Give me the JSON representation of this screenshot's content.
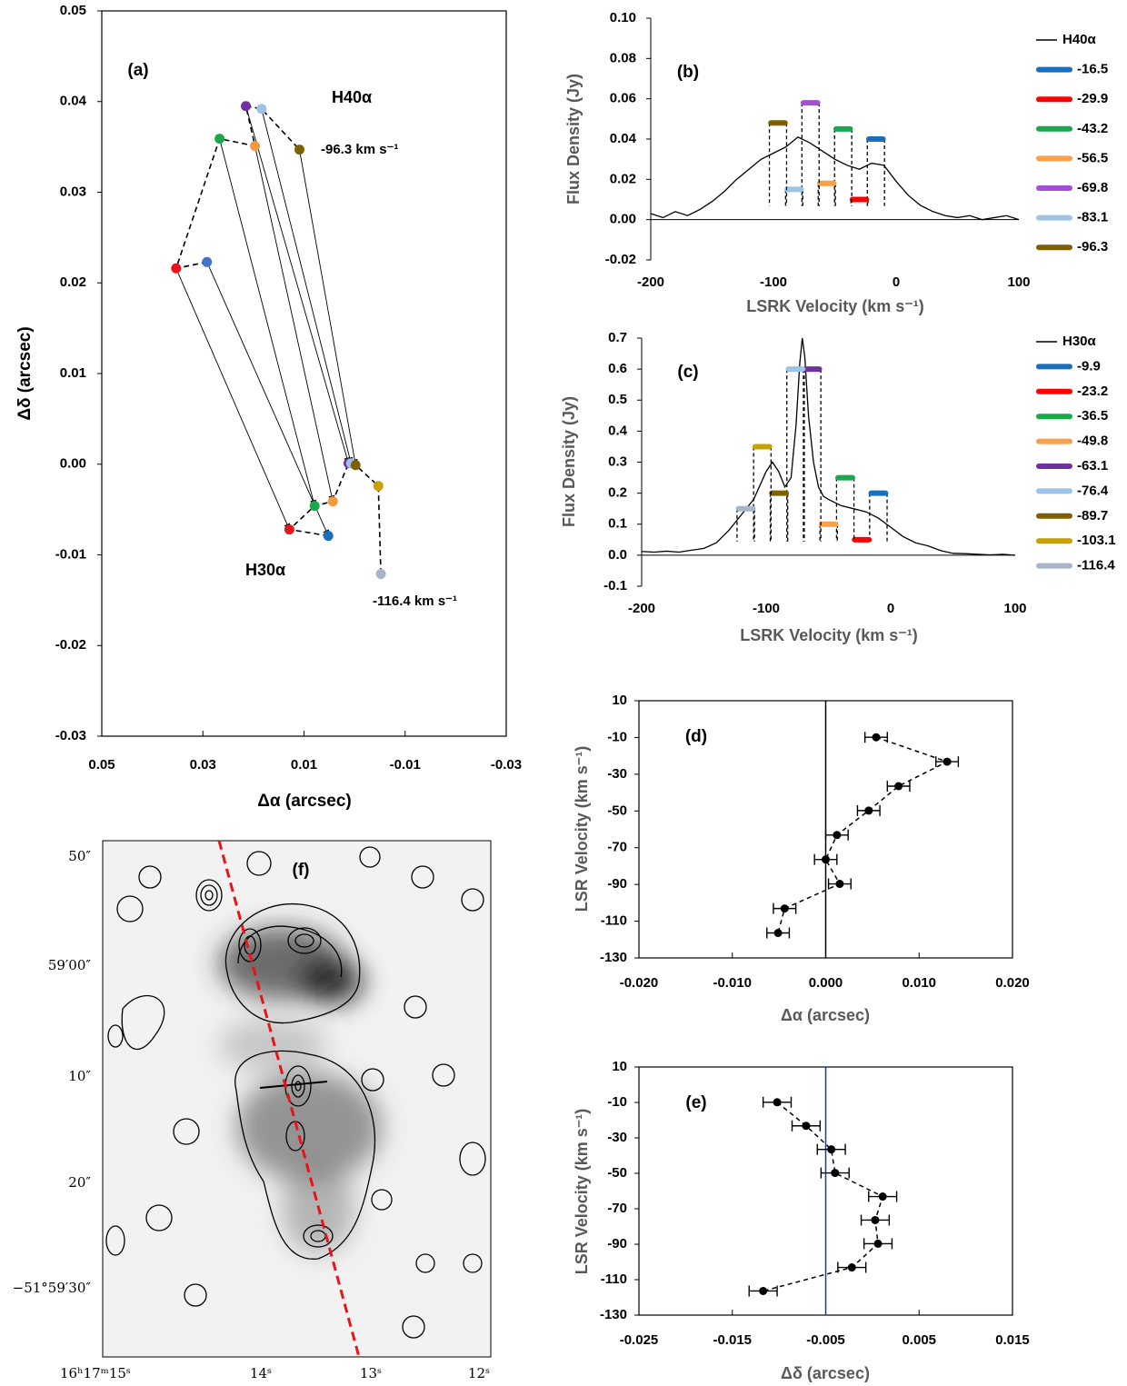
{
  "chart_data": [
    {
      "type": "scatter",
      "label": "(a)",
      "xlabel": "Δα (arcsec)",
      "ylabel": "Δδ (arcsec)",
      "xlim": [
        0.05,
        -0.03
      ],
      "xticks": [
        0.05,
        0.03,
        0.01,
        -0.01,
        -0.03
      ],
      "ylim": [
        -0.03,
        0.05
      ],
      "yticks": [
        0.05,
        0.04,
        0.03,
        0.02,
        0.01,
        {
          "value": 0,
          "label": "0.00"
        },
        -0.01,
        -0.02,
        -0.03
      ],
      "series": [
        {
          "name": "H40α",
          "x": [
            0.0292,
            0.0353,
            0.0267,
            0.0197,
            0.0215,
            0.0184,
            0.0109
          ],
          "y": [
            0.0223,
            0.0216,
            0.0359,
            0.0351,
            0.0395,
            0.0392,
            0.0347
          ],
          "colors": [
            "#4472c4",
            "#e8141a",
            "#1aa84a",
            "#f59a3c",
            "#7030a0",
            "#9dc3e6",
            "#7f6000"
          ]
        },
        {
          "name": "H30α",
          "x": [
            0.0052,
            0.0129,
            0.0079,
            0.0043,
            0.0012,
            0.0007,
            -0.0002,
            -0.0047,
            -0.0052
          ],
          "y": [
            -0.0079,
            -0.0072,
            -0.0046,
            -0.0041,
            0.0001,
            0.0001,
            -0.0001,
            -0.0024,
            -0.0121
          ],
          "colors": [
            "#1a6fbd",
            "#e8141a",
            "#1aa84a",
            "#f59a3c",
            "#7030a0",
            "#9dc3e6",
            "#7f6000",
            "#c8a000",
            "#a8b4c8"
          ]
        }
      ],
      "annotations": [
        "-96.3 km s⁻¹",
        "-116.4 km s⁻¹"
      ]
    },
    {
      "type": "line",
      "label": "(b)",
      "xlabel": "LSRK Velocity (km s⁻¹)",
      "ylabel": "Flux Density (Jy)",
      "xlim": [
        -200,
        100
      ],
      "xticks": [
        -200,
        -100,
        0,
        100
      ],
      "ylim": [
        -0.02,
        0.1
      ],
      "yticks": [
        {
          "value": 0.1,
          "label": "0.10"
        },
        0.08,
        0.06,
        0.04,
        0.02,
        {
          "value": 0,
          "label": "0.00"
        },
        -0.02
      ],
      "series": [
        {
          "name": "H40α",
          "color": "#000000",
          "x": [
            -200,
            -190,
            -180,
            -170,
            -160,
            -150,
            -140,
            -130,
            -120,
            -110,
            -100,
            -90,
            -80,
            -70,
            -60,
            -50,
            -40,
            -30,
            -20,
            -10,
            0,
            10,
            20,
            30,
            40,
            50,
            60,
            70,
            80,
            90,
            100
          ],
          "values": [
            0.003,
            0.001,
            0.004,
            0.002,
            0.005,
            0.009,
            0.014,
            0.02,
            0.025,
            0.03,
            0.033,
            0.036,
            0.041,
            0.038,
            0.034,
            0.03,
            0.027,
            0.025,
            0.028,
            0.027,
            0.019,
            0.012,
            0.007,
            0.004,
            0.002,
            0.001,
            0.002,
            0.0,
            0.001,
            0.002,
            0.0
          ]
        }
      ],
      "channels": {
        "names": [
          "-16.5",
          "-29.9",
          "-43.2",
          "-56.5",
          "-69.8",
          "-83.1",
          "-96.3"
        ],
        "x": [
          -16.5,
          -29.9,
          -43.2,
          -56.5,
          -69.8,
          -83.1,
          -96.3
        ],
        "values": [
          0.04,
          0.01,
          0.045,
          0.018,
          0.058,
          0.015,
          0.048
        ],
        "colors": [
          "#1a6fbd",
          "#ff0000",
          "#1aa84a",
          "#f9a04a",
          "#a050d0",
          "#9dc3e6",
          "#7f6000"
        ]
      }
    },
    {
      "type": "line",
      "label": "(c)",
      "xlabel": "LSRK  Velocity (km s⁻¹)",
      "ylabel": "Flux Density (Jy)",
      "xlim": [
        -200,
        100
      ],
      "xticks": [
        -200,
        -100,
        0,
        100
      ],
      "ylim": [
        -0.1,
        0.7
      ],
      "yticks": [
        0.7,
        0.6,
        0.5,
        0.4,
        0.3,
        0.2,
        0.1,
        {
          "value": 0,
          "label": "0.0"
        },
        -0.1
      ],
      "series": [
        {
          "name": "H30α",
          "color": "#000000",
          "x": [
            -200,
            -190,
            -180,
            -170,
            -160,
            -150,
            -140,
            -130,
            -120,
            -110,
            -100,
            -95,
            -90,
            -85,
            -80,
            -76,
            -73,
            -71,
            -69,
            -66,
            -62,
            -58,
            -54,
            -50,
            -40,
            -30,
            -20,
            -10,
            0,
            10,
            20,
            30,
            40,
            50,
            60,
            70,
            80,
            90,
            100
          ],
          "values": [
            0.012,
            0.01,
            0.013,
            0.01,
            0.016,
            0.022,
            0.04,
            0.08,
            0.13,
            0.18,
            0.27,
            0.3,
            0.27,
            0.22,
            0.25,
            0.42,
            0.62,
            0.7,
            0.64,
            0.45,
            0.3,
            0.22,
            0.19,
            0.18,
            0.16,
            0.15,
            0.14,
            0.12,
            0.09,
            0.06,
            0.04,
            0.03,
            0.015,
            0.006,
            0.005,
            0.003,
            0.001,
            0.003,
            0.0
          ]
        }
      ],
      "channels": {
        "names": [
          "-9.9",
          "-23.2",
          "-36.5",
          "-49.8",
          "-63.1",
          "-76.4",
          "-89.7",
          "-103.1",
          "-116.4"
        ],
        "x": [
          -9.9,
          -23.2,
          -36.5,
          -49.8,
          -63.1,
          -76.4,
          -89.7,
          -103.1,
          -116.4
        ],
        "values": [
          0.2,
          0.05,
          0.25,
          0.1,
          0.6,
          0.6,
          0.2,
          0.35,
          0.15
        ],
        "colors": [
          "#1a6fbd",
          "#ff0000",
          "#1aa84a",
          "#f9a04a",
          "#7030a0",
          "#9dc3e6",
          "#7f6000",
          "#c8a000",
          "#a8b4c8"
        ]
      }
    },
    {
      "type": "errorbar",
      "label": "(d)",
      "xlabel": "Δα (arcsec)",
      "ylabel": "LSR Velocity (km s⁻¹)",
      "xlim": [
        -0.02,
        0.02
      ],
      "xticks": [
        {
          "value": -0.02,
          "label": "-0.020"
        },
        {
          "value": -0.01,
          "label": "-0.010"
        },
        {
          "value": 0,
          "label": "0.000"
        },
        {
          "value": 0.01,
          "label": "0.010"
        },
        {
          "value": 0.02,
          "label": "0.020"
        }
      ],
      "ylim": [
        -130,
        10
      ],
      "yticks": [
        10,
        -10,
        -30,
        -50,
        -70,
        -90,
        -110,
        -130
      ],
      "x": [
        0.0054,
        0.013,
        0.0078,
        0.0046,
        0.0012,
        0.0,
        0.0015,
        -0.0044,
        -0.0051
      ],
      "values": [
        -9.9,
        -23.2,
        -36.5,
        -49.8,
        -63.1,
        -76.4,
        -89.7,
        -103.1,
        -116.4
      ],
      "errors": [
        0.0012,
        0.0012,
        0.0012,
        0.0012,
        0.0012,
        0.0012,
        0.0012,
        0.0012,
        0.0012
      ],
      "vline": 0,
      "vline_color": "#000000"
    },
    {
      "type": "errorbar",
      "label": "(e)",
      "xlabel": "Δδ (arcsec)",
      "ylabel": "LSR Velocity (km s⁻¹)",
      "xlim": [
        -0.025,
        0.015
      ],
      "xticks": [
        -0.025,
        -0.015,
        -0.005,
        0.005,
        0.015
      ],
      "ylim": [
        -130,
        10
      ],
      "yticks": [
        10,
        -10,
        -30,
        -50,
        -70,
        -90,
        -110,
        -130
      ],
      "x": [
        -0.0102,
        -0.0071,
        -0.0044,
        -0.004,
        0.0011,
        0.0003,
        0.0006,
        -0.0022,
        -0.0117
      ],
      "values": [
        -9.9,
        -23.2,
        -36.5,
        -49.8,
        -63.1,
        -76.4,
        -89.7,
        -103.1,
        -116.4
      ],
      "errors": [
        0.0015,
        0.0015,
        0.0015,
        0.0015,
        0.0015,
        0.0015,
        0.0015,
        0.0015,
        0.0015
      ],
      "vline": -0.005,
      "vline_color": "#1f3c88"
    }
  ],
  "image_panel": {
    "label": "(f)",
    "yticks": [
      "50″",
      "59′00″",
      "10″",
      "20″",
      "−51°59′30″"
    ],
    "xticks": [
      "16ʰ17ᵐ15ˢ",
      "14ˢ",
      "13ˢ",
      "12ˢ"
    ]
  }
}
